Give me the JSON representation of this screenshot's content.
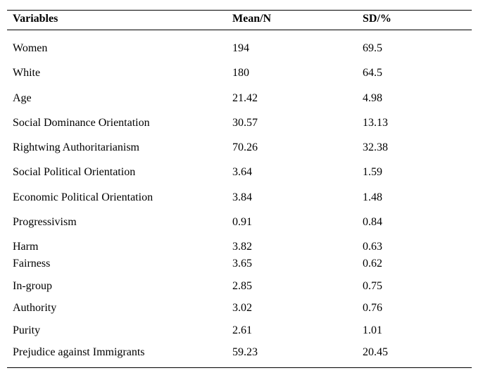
{
  "table": {
    "header": [
      "Variables",
      "Mean/N",
      "SD/%"
    ],
    "rows": [
      [
        "Women",
        "194",
        "69.5"
      ],
      [
        "White",
        "180",
        "64.5"
      ],
      [
        "Age",
        "21.42",
        "4.98"
      ],
      [
        "Social Dominance Orientation",
        "30.57",
        "13.13"
      ],
      [
        "Rightwing Authoritarianism",
        "70.26",
        "32.38"
      ],
      [
        "Social Political Orientation",
        "3.64",
        "1.59"
      ],
      [
        "Economic Political Orientation",
        "3.84",
        "1.48"
      ],
      [
        "Progressivism",
        "0.91",
        "0.84"
      ],
      [
        "Harm",
        "3.82",
        "0.63"
      ],
      [
        "Fairness",
        "3.65",
        "0.62"
      ],
      [
        "In-group",
        "2.85",
        "0.75"
      ],
      [
        "Authority",
        "3.02",
        "0.76"
      ],
      [
        "Purity",
        "2.61",
        "1.01"
      ],
      [
        "Prejudice against Immigrants",
        "59.23",
        "20.45"
      ]
    ]
  }
}
